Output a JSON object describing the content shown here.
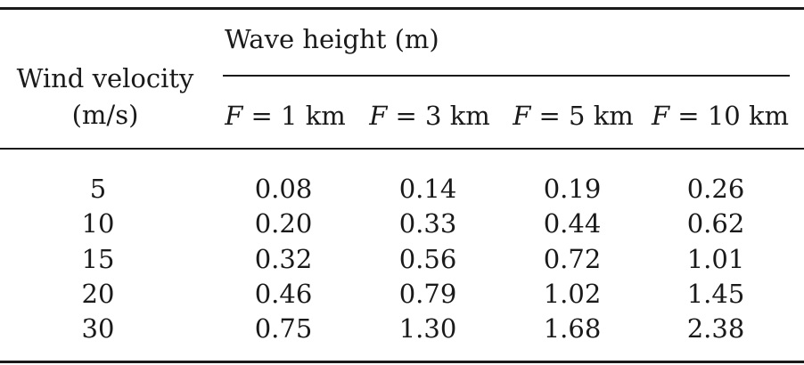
{
  "table": {
    "stub_header": [
      "Wind velocity",
      "(m/s)"
    ],
    "group_header": "Wave height (m)",
    "column_headers": [
      {
        "var": "F",
        "rest": " = 1 km"
      },
      {
        "var": "F",
        "rest": " = 3 km"
      },
      {
        "var": "F",
        "rest": " = 5 km"
      },
      {
        "var": "F",
        "rest": " = 10 km"
      }
    ],
    "rows": [
      [
        "5",
        "0.08",
        "0.14",
        "0.19",
        "0.26"
      ],
      [
        "10",
        "0.20",
        "0.33",
        "0.44",
        "0.62"
      ],
      [
        "15",
        "0.32",
        "0.56",
        "0.72",
        "1.01"
      ],
      [
        "20",
        "0.46",
        "0.79",
        "1.02",
        "1.45"
      ],
      [
        "30",
        "0.75",
        "1.30",
        "1.68",
        "2.38"
      ]
    ]
  }
}
